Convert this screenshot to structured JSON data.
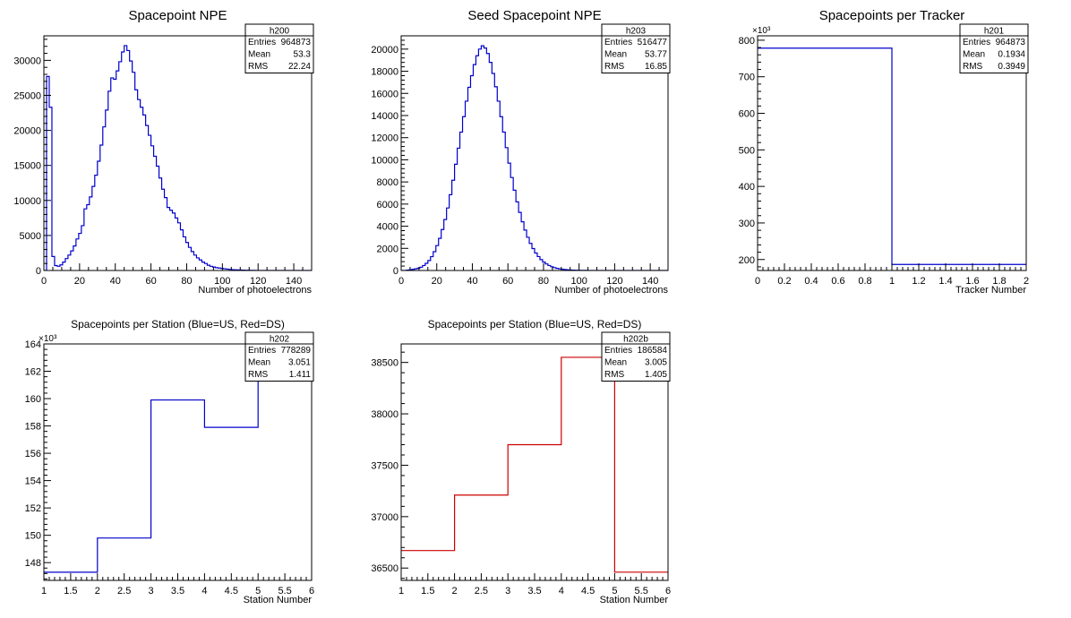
{
  "chart_data": [
    {
      "id": "p1",
      "type": "histogram",
      "title": "Spacepoint NPE",
      "xlabel": "Number of photoelectrons",
      "xlim": [
        0,
        150
      ],
      "ylim": [
        0,
        33500
      ],
      "xticks": [
        0,
        20,
        40,
        60,
        80,
        100,
        120,
        140
      ],
      "yticks": [
        0,
        5000,
        10000,
        15000,
        20000,
        25000,
        30000
      ],
      "ytick_labels": [
        "0",
        "5000",
        "10000",
        "15000",
        "20000",
        "25000",
        "30000"
      ],
      "exponent_label": "",
      "color": "#0000cc",
      "bin_width": 1.5,
      "values": [
        0,
        27700,
        23300,
        2000,
        700,
        600,
        800,
        1200,
        1700,
        2200,
        2800,
        3500,
        4500,
        5300,
        6400,
        8800,
        9400,
        10500,
        12000,
        13600,
        15600,
        17900,
        20500,
        22900,
        25600,
        27500,
        27300,
        28500,
        29800,
        31200,
        32100,
        31400,
        29900,
        28300,
        25800,
        24400,
        23300,
        22200,
        20700,
        19300,
        17800,
        16300,
        14900,
        13200,
        11600,
        10400,
        9000,
        8600,
        8200,
        7500,
        6800,
        5800,
        4800,
        4000,
        3300,
        2700,
        2200,
        1800,
        1500,
        1200,
        1000,
        750,
        600,
        500,
        400,
        350,
        300,
        250,
        200,
        150,
        120,
        100,
        80,
        60,
        50,
        40,
        30,
        20,
        15,
        10,
        5,
        5,
        3,
        2,
        1,
        1,
        1,
        1,
        0,
        0,
        0,
        0,
        0,
        0,
        0,
        0,
        0,
        0,
        0,
        0
      ],
      "stats": {
        "name": "h200",
        "rows": [
          [
            "Entries",
            "964873"
          ],
          [
            "Mean",
            "53.3"
          ],
          [
            "RMS",
            "22.24"
          ]
        ]
      }
    },
    {
      "id": "p2",
      "type": "histogram",
      "title": "Seed Spacepoint NPE",
      "xlabel": "Number of photoelectrons",
      "xlim": [
        0,
        150
      ],
      "ylim": [
        0,
        21200
      ],
      "xticks": [
        0,
        20,
        40,
        60,
        80,
        100,
        120,
        140
      ],
      "yticks": [
        0,
        2000,
        4000,
        6000,
        8000,
        10000,
        12000,
        14000,
        16000,
        18000,
        20000
      ],
      "ytick_labels": [
        "0",
        "2000",
        "4000",
        "6000",
        "8000",
        "10000",
        "12000",
        "14000",
        "16000",
        "18000",
        "20000"
      ],
      "exponent_label": "",
      "color": "#0000cc",
      "bin_width": 1.5,
      "values": [
        0,
        0,
        30,
        60,
        100,
        150,
        200,
        300,
        450,
        650,
        900,
        1250,
        1700,
        2250,
        2900,
        3700,
        4600,
        5650,
        6850,
        8150,
        9600,
        11050,
        12500,
        13900,
        15300,
        16550,
        17600,
        18600,
        19400,
        20000,
        20300,
        20100,
        19600,
        18800,
        17800,
        16600,
        15300,
        13900,
        12500,
        11100,
        9700,
        8400,
        7250,
        6200,
        5250,
        4400,
        3650,
        3000,
        2450,
        1980,
        1580,
        1260,
        980,
        760,
        590,
        450,
        340,
        260,
        195,
        145,
        110,
        80,
        60,
        45,
        35,
        25,
        20,
        15,
        10,
        8,
        6,
        5,
        4,
        3,
        2,
        2,
        1,
        1,
        1,
        1,
        0,
        0,
        0,
        0,
        0,
        0,
        0,
        0,
        0,
        0,
        0,
        0,
        0,
        0,
        0,
        0,
        0,
        0,
        0,
        0
      ],
      "stats": {
        "name": "h203",
        "rows": [
          [
            "Entries",
            "516477"
          ],
          [
            "Mean",
            "53.77"
          ],
          [
            "RMS",
            "16.85"
          ]
        ]
      }
    },
    {
      "id": "p3",
      "type": "histogram",
      "title": "Spacepoints per Tracker",
      "xlabel": "Tracker Number",
      "xlim": [
        0,
        2
      ],
      "ylim": [
        170,
        812
      ],
      "xticks": [
        0,
        0.2,
        0.4,
        0.6,
        0.8,
        1,
        1.2,
        1.4,
        1.6,
        1.8,
        2
      ],
      "yticks": [
        200,
        300,
        400,
        500,
        600,
        700,
        800
      ],
      "ytick_labels": [
        "200",
        "300",
        "400",
        "500",
        "600",
        "700",
        "800"
      ],
      "exponent_label": "×10³",
      "color": "#0000cc",
      "bin_width": 1,
      "values": [
        778.3,
        186.6
      ],
      "stats": {
        "name": "h201",
        "rows": [
          [
            "Entries",
            "964873"
          ],
          [
            "Mean",
            "0.1934"
          ],
          [
            "RMS",
            "0.3949"
          ]
        ]
      }
    },
    {
      "id": "p4",
      "type": "histogram",
      "title": "Spacepoints per Station (Blue=US, Red=DS)",
      "xlabel": "Station Number",
      "xlim": [
        1,
        6
      ],
      "ylim": [
        146.7,
        164
      ],
      "xticks": [
        1,
        1.5,
        2,
        2.5,
        3,
        3.5,
        4,
        4.5,
        5,
        5.5,
        6
      ],
      "yticks": [
        148,
        150,
        152,
        154,
        156,
        158,
        160,
        162,
        164
      ],
      "ytick_labels": [
        "148",
        "150",
        "152",
        "154",
        "156",
        "158",
        "160",
        "162",
        "164"
      ],
      "exponent_label": "×10³",
      "color": "#0000cc",
      "bin_width": 1,
      "values": [
        147.3,
        149.8,
        159.9,
        157.9,
        163.4
      ],
      "stats": {
        "name": "h202",
        "rows": [
          [
            "Entries",
            "778289"
          ],
          [
            "Mean",
            "3.051"
          ],
          [
            "RMS",
            "1.411"
          ]
        ]
      }
    },
    {
      "id": "p5",
      "type": "histogram",
      "title": "Spacepoints per Station (Blue=US, Red=DS)",
      "xlabel": "Station Number",
      "xlim": [
        1,
        6
      ],
      "ylim": [
        36380,
        38680
      ],
      "xticks": [
        1,
        1.5,
        2,
        2.5,
        3,
        3.5,
        4,
        4.5,
        5,
        5.5,
        6
      ],
      "yticks": [
        36500,
        37000,
        37500,
        38000,
        38500
      ],
      "ytick_labels": [
        "36500",
        "37000",
        "37500",
        "38000",
        "38500"
      ],
      "exponent_label": "",
      "color": "#cc0000",
      "bin_width": 1,
      "values": [
        36670,
        37210,
        37700,
        38550,
        36460
      ],
      "stats": {
        "name": "h202b",
        "rows": [
          [
            "Entries",
            "186584"
          ],
          [
            "Mean",
            "3.005"
          ],
          [
            "RMS",
            "1.405"
          ]
        ]
      }
    }
  ]
}
